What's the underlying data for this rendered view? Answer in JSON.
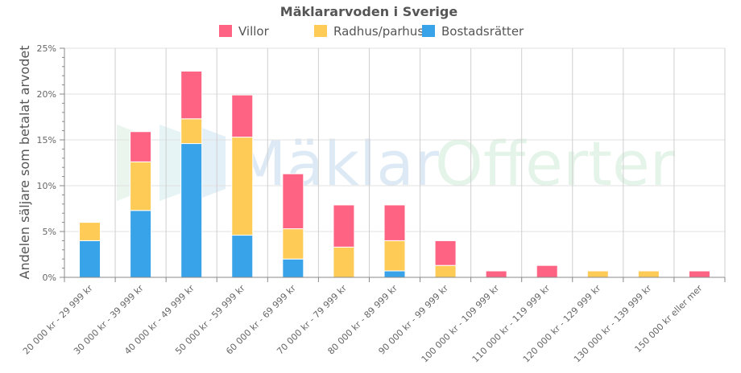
{
  "chart_data": {
    "type": "bar",
    "stacked": true,
    "title": "Mäklararvoden i Sverige",
    "xlabel": "",
    "ylabel": "Andelen säljare som betalat arvodet",
    "ylim": [
      0,
      25
    ],
    "yticks": [
      "0%",
      "5%",
      "10%",
      "15%",
      "20%",
      "25%"
    ],
    "legend_position": "top-center",
    "watermark": "MäklarOfferter",
    "categories": [
      "20 000 kr - 29 999 kr",
      "30 000 kr - 39 999 kr",
      "40 000 kr - 49 999 kr",
      "50 000 kr - 59 999 kr",
      "60 000 kr - 69 999 kr",
      "70 000 kr - 79 999 kr",
      "80 000 kr - 89 999 kr",
      "90 000 kr - 99 999 kr",
      "100 000 kr - 109 999 kr",
      "110 000 kr - 119 999 kr",
      "120 000 kr - 129 999 kr",
      "130 000 kr - 139 999 kr",
      "150 000 kr eller mer"
    ],
    "series": [
      {
        "name": "Bostadsrätter",
        "color": "#38a3e8",
        "values": [
          4.0,
          7.3,
          14.6,
          4.6,
          2.0,
          0,
          0.7,
          0,
          0,
          0,
          0,
          0,
          0
        ]
      },
      {
        "name": "Radhus/parhus",
        "color": "#fecb57",
        "values": [
          2.0,
          5.3,
          2.7,
          10.7,
          3.3,
          3.3,
          3.3,
          1.3,
          0,
          0,
          0.7,
          0.7,
          0
        ]
      },
      {
        "name": "Villor",
        "color": "#ff6384",
        "values": [
          0,
          3.3,
          5.2,
          4.6,
          6.0,
          4.6,
          3.9,
          2.7,
          0.7,
          1.3,
          0,
          0,
          0.7
        ]
      }
    ],
    "legend_order": [
      "Villor",
      "Radhus/parhus",
      "Bostadsrätter"
    ]
  }
}
